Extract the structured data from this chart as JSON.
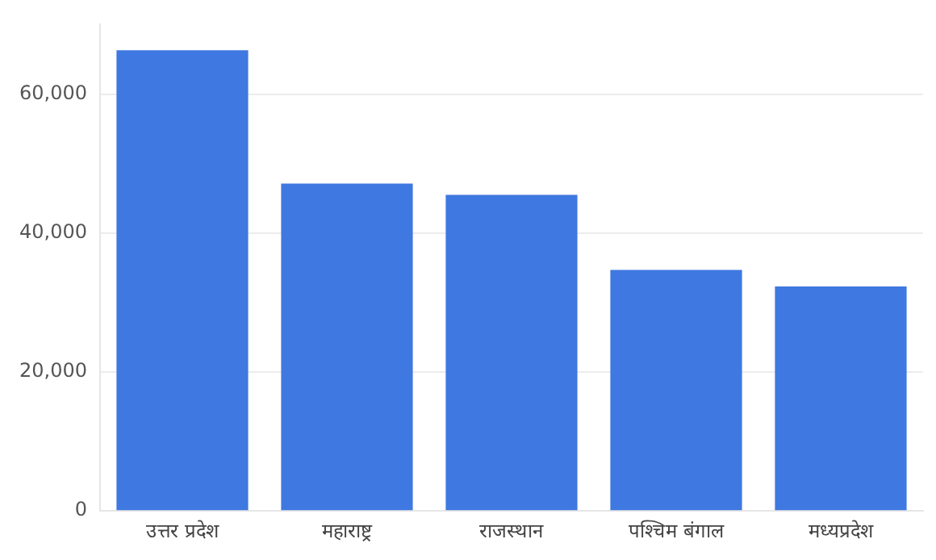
{
  "chart_data": {
    "type": "bar",
    "categories": [
      "उत्तर प्रदेश",
      "महाराष्ट्र",
      "राजस्थान",
      "पश्चिम बंगाल",
      "मध्यप्रदेश"
    ],
    "values": [
      66300,
      47100,
      45500,
      34700,
      32300
    ],
    "color": "#3f78e0",
    "ylim": [
      0,
      70000
    ],
    "yticks": [
      0,
      {
        "value": 20000,
        "label": "20,000"
      },
      {
        "value": 40000,
        "label": "40,000"
      },
      {
        "value": 60000,
        "label": "60,000"
      }
    ],
    "grid": "y",
    "legend": false
  }
}
